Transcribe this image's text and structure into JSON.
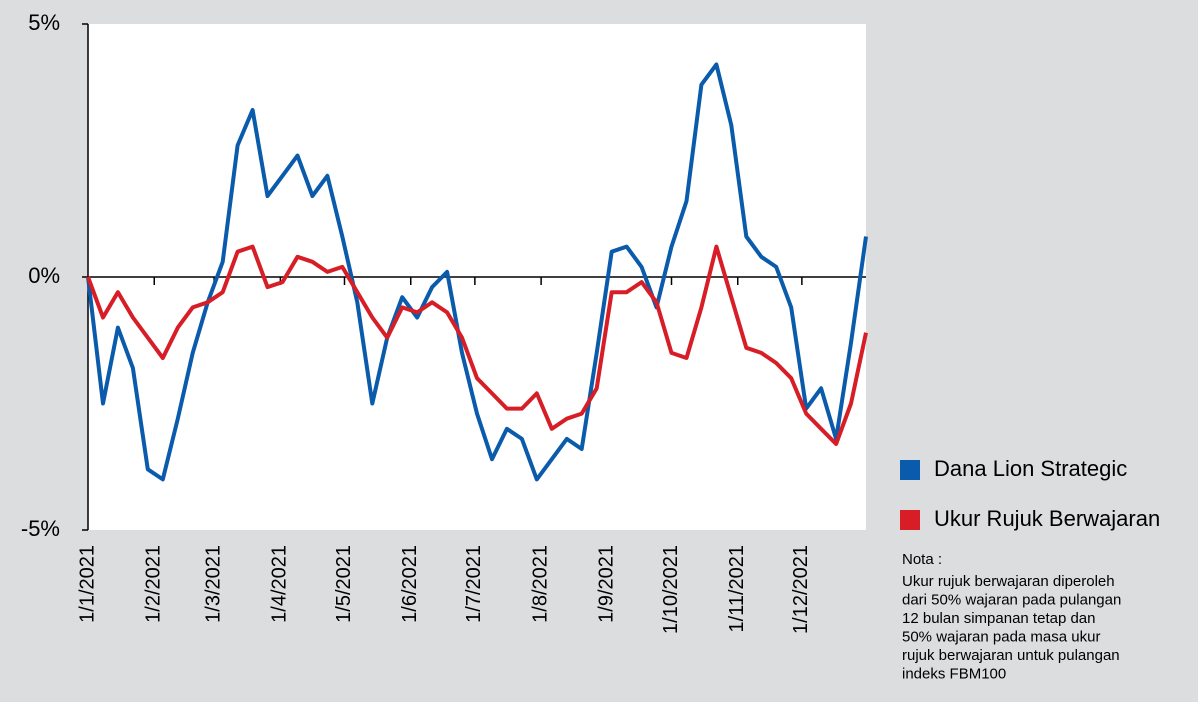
{
  "chart_data": {
    "type": "line",
    "x": [
      "1/1/2021",
      "8/1/2021",
      "15/1/2021",
      "22/1/2021",
      "29/1/2021",
      "5/2/2021",
      "12/2/2021",
      "19/2/2021",
      "26/2/2021",
      "5/3/2021",
      "12/3/2021",
      "19/3/2021",
      "26/3/2021",
      "2/4/2021",
      "9/4/2021",
      "16/4/2021",
      "23/4/2021",
      "30/4/2021",
      "7/5/2021",
      "14/5/2021",
      "21/5/2021",
      "28/5/2021",
      "4/6/2021",
      "11/6/2021",
      "18/6/2021",
      "25/6/2021",
      "2/7/2021",
      "9/7/2021",
      "16/7/2021",
      "23/7/2021",
      "30/7/2021",
      "6/8/2021",
      "13/8/2021",
      "20/8/2021",
      "27/8/2021",
      "3/9/2021",
      "10/9/2021",
      "17/9/2021",
      "24/9/2021",
      "1/10/2021",
      "8/10/2021",
      "15/10/2021",
      "22/10/2021",
      "29/10/2021",
      "5/11/2021",
      "12/11/2021",
      "19/11/2021",
      "26/11/2021",
      "3/12/2021",
      "10/12/2021",
      "17/12/2021",
      "24/12/2021",
      "31/12/2021"
    ],
    "series": [
      {
        "name": "Dana Lion Strategic",
        "color": "#0a5bab",
        "values": [
          0,
          -2.5,
          -1.0,
          -1.8,
          -3.8,
          -4.0,
          -2.8,
          -1.5,
          -0.5,
          0.3,
          2.6,
          3.3,
          1.6,
          2.0,
          2.4,
          1.6,
          2.0,
          0.8,
          -0.5,
          -2.5,
          -1.2,
          -0.4,
          -0.8,
          -0.2,
          0.1,
          -1.5,
          -2.7,
          -3.6,
          -3.0,
          -3.2,
          -4.0,
          -3.6,
          -3.2,
          -3.4,
          -1.5,
          0.5,
          0.6,
          0.2,
          -0.6,
          0.6,
          1.5,
          3.8,
          4.2,
          3.0,
          0.8,
          0.4,
          0.2,
          -0.6,
          -2.6,
          -2.2,
          -3.2,
          -1.3,
          0.8
        ]
      },
      {
        "name": "Ukur Rujuk Berwajaran",
        "color": "#d71d26",
        "values": [
          0,
          -0.8,
          -0.3,
          -0.8,
          -1.2,
          -1.6,
          -1.0,
          -0.6,
          -0.5,
          -0.3,
          0.5,
          0.6,
          -0.2,
          -0.1,
          0.4,
          0.3,
          0.1,
          0.2,
          -0.3,
          -0.8,
          -1.2,
          -0.6,
          -0.7,
          -0.5,
          -0.7,
          -1.2,
          -2.0,
          -2.3,
          -2.6,
          -2.6,
          -2.3,
          -3.0,
          -2.8,
          -2.7,
          -2.2,
          -0.3,
          -0.3,
          -0.1,
          -0.5,
          -1.5,
          -1.6,
          -0.6,
          0.6,
          -0.4,
          -1.4,
          -1.5,
          -1.7,
          -2.0,
          -2.7,
          -3.0,
          -3.3,
          -2.5,
          -1.1
        ]
      }
    ],
    "xlim": [
      "1/1/2021",
      "31/12/2021"
    ],
    "xticks": [
      "1/1/2021",
      "1/2/2021",
      "1/3/2021",
      "1/4/2021",
      "1/5/2021",
      "1/6/2021",
      "1/7/2021",
      "1/8/2021",
      "1/9/2021",
      "1/10/2021",
      "1/11/2021",
      "1/12/2021"
    ],
    "ylim": [
      -5,
      5
    ],
    "yticks": [
      {
        "value": -5,
        "label": "-5%"
      },
      {
        "value": 0,
        "label": "0%"
      },
      {
        "value": 5,
        "label": "5%"
      }
    ],
    "note_title": "Nota :",
    "note": [
      "Ukur rujuk berwajaran diperoleh",
      "dari 50% wajaran pada pulangan",
      "12 bulan simpanan tetap dan",
      "50% wajaran pada masa ukur",
      "rujuk berwajaran untuk pulangan",
      "indeks FBM100"
    ]
  }
}
